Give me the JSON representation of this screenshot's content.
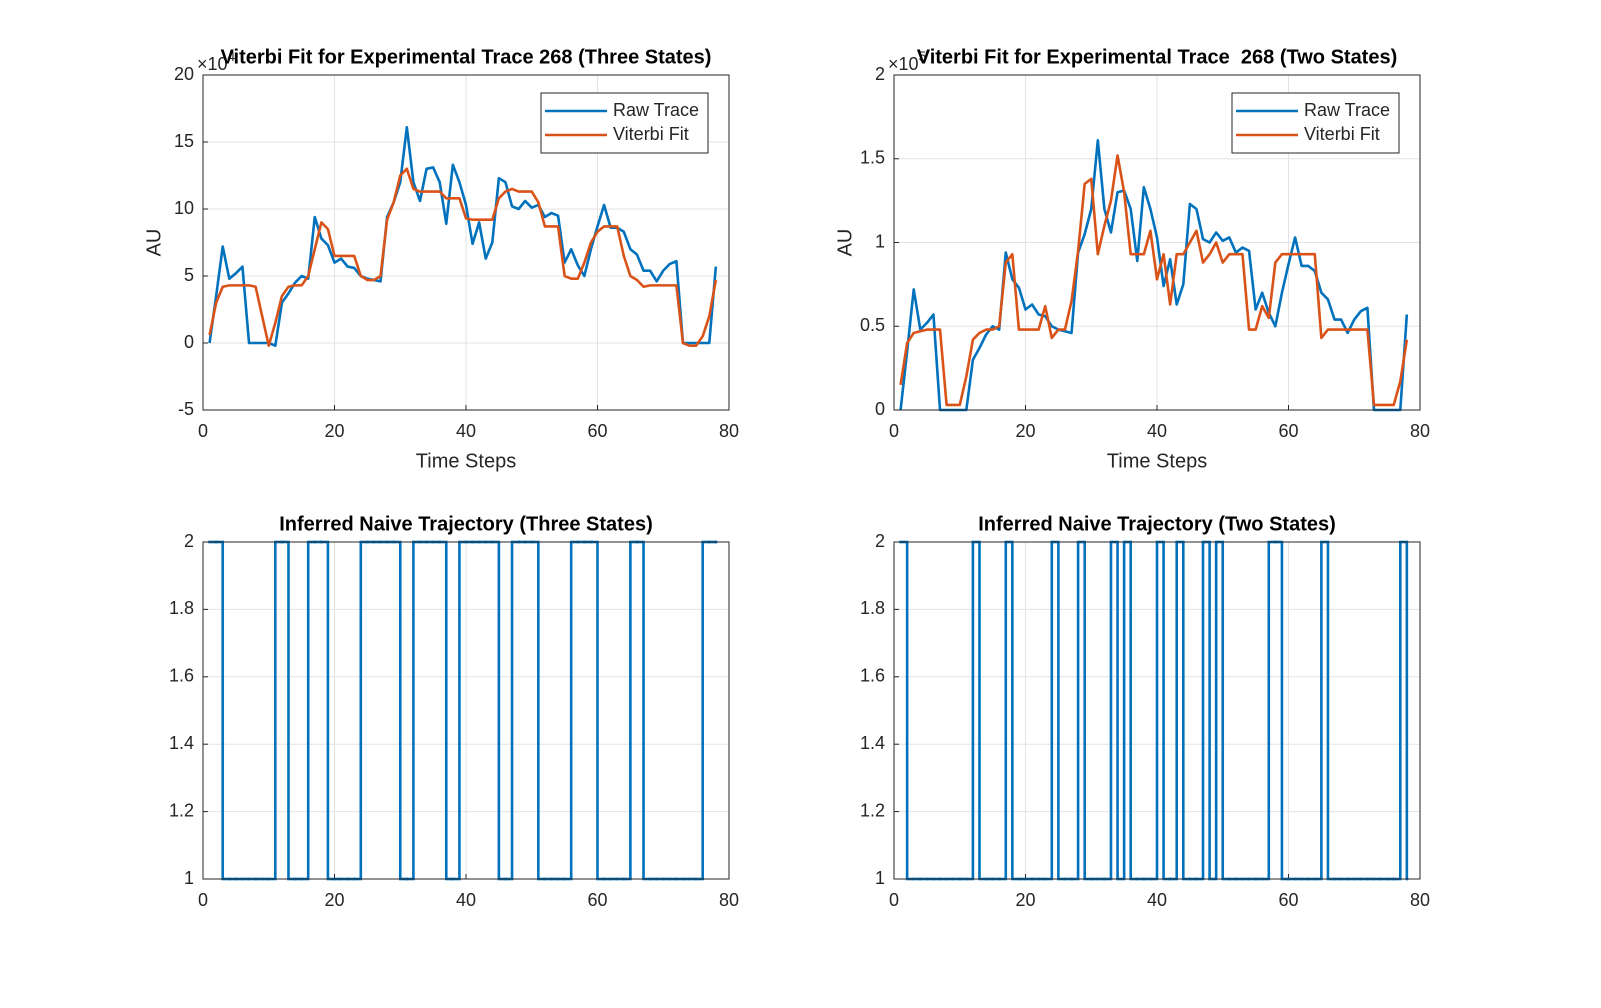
{
  "chart_data": [
    {
      "type": "line",
      "title": "Viterbi Fit for Experimental Trace 268 (Three States)",
      "xlabel": "Time Steps",
      "ylabel": "AU",
      "y_exponent_base": "×10",
      "y_exponent": "4",
      "x": [
        1,
        2,
        3,
        4,
        5,
        6,
        7,
        8,
        9,
        10,
        11,
        12,
        13,
        14,
        15,
        16,
        17,
        18,
        19,
        20,
        21,
        22,
        23,
        24,
        25,
        26,
        27,
        28,
        29,
        30,
        31,
        32,
        33,
        34,
        35,
        36,
        37,
        38,
        39,
        40,
        41,
        42,
        43,
        44,
        45,
        46,
        47,
        48,
        49,
        50,
        51,
        52,
        53,
        54,
        55,
        56,
        57,
        58,
        59,
        60,
        61,
        62,
        63,
        64,
        65,
        66,
        67,
        68,
        69,
        70,
        71,
        72,
        73,
        74,
        75,
        76,
        77,
        78
      ],
      "series": [
        {
          "name": "Raw Trace",
          "color": "#0072bd",
          "values": [
            0,
            3.5,
            7.2,
            4.8,
            5.2,
            5.7,
            0,
            0,
            0,
            0,
            -0.2,
            3.0,
            3.7,
            4.5,
            5.0,
            4.8,
            9.4,
            7.8,
            7.3,
            6.0,
            6.3,
            5.7,
            5.6,
            5.0,
            4.8,
            4.7,
            4.6,
            9.4,
            10.5,
            12.0,
            16.1,
            12.0,
            10.6,
            13.0,
            13.1,
            12.0,
            8.9,
            13.3,
            12.0,
            10.3,
            7.4,
            9.0,
            6.3,
            7.5,
            12.3,
            12.0,
            10.2,
            10.0,
            10.6,
            10.1,
            10.3,
            9.4,
            9.7,
            9.5,
            6.0,
            7.0,
            5.8,
            5.0,
            7.0,
            8.7,
            10.3,
            8.6,
            8.6,
            8.3,
            7.0,
            6.6,
            5.4,
            5.4,
            4.6,
            5.4,
            5.9,
            6.1,
            0,
            0,
            0,
            0,
            0,
            5.7
          ]
        },
        {
          "name": "Viterbi Fit",
          "color": "#d95319",
          "values": [
            0.6,
            3.0,
            4.2,
            4.3,
            4.3,
            4.3,
            4.3,
            4.2,
            2.0,
            -0.2,
            1.5,
            3.5,
            4.2,
            4.3,
            4.3,
            5.0,
            7.0,
            9.0,
            8.5,
            6.5,
            6.5,
            6.5,
            6.5,
            5.0,
            4.7,
            4.7,
            5.0,
            9.2,
            10.5,
            12.5,
            13.0,
            11.5,
            11.3,
            11.3,
            11.3,
            11.3,
            10.8,
            10.8,
            10.8,
            9.3,
            9.2,
            9.2,
            9.2,
            9.2,
            10.8,
            11.3,
            11.5,
            11.3,
            11.3,
            11.3,
            10.5,
            8.7,
            8.7,
            8.7,
            5.0,
            4.8,
            4.8,
            6.0,
            7.5,
            8.3,
            8.7,
            8.7,
            8.7,
            6.5,
            5.0,
            4.7,
            4.2,
            4.3,
            4.3,
            4.3,
            4.3,
            4.3,
            0.0,
            -0.2,
            -0.2,
            0.5,
            2.0,
            4.7
          ]
        }
      ],
      "xlim": [
        0,
        80
      ],
      "xticks": [
        0,
        20,
        40,
        60,
        80
      ],
      "ylim": [
        -5,
        20
      ],
      "yticks": [
        -5,
        0,
        5,
        10,
        15,
        20
      ],
      "grid": true,
      "legend": "northeast"
    },
    {
      "type": "line",
      "title": "Viterbi Fit for Experimental Trace  268 (Two States)",
      "xlabel": "Time Steps",
      "ylabel": "AU",
      "y_exponent_base": "×10",
      "y_exponent": "5",
      "x": [
        1,
        2,
        3,
        4,
        5,
        6,
        7,
        8,
        9,
        10,
        11,
        12,
        13,
        14,
        15,
        16,
        17,
        18,
        19,
        20,
        21,
        22,
        23,
        24,
        25,
        26,
        27,
        28,
        29,
        30,
        31,
        32,
        33,
        34,
        35,
        36,
        37,
        38,
        39,
        40,
        41,
        42,
        43,
        44,
        45,
        46,
        47,
        48,
        49,
        50,
        51,
        52,
        53,
        54,
        55,
        56,
        57,
        58,
        59,
        60,
        61,
        62,
        63,
        64,
        65,
        66,
        67,
        68,
        69,
        70,
        71,
        72,
        73,
        74,
        75,
        76,
        77,
        78
      ],
      "series": [
        {
          "name": "Raw Trace",
          "color": "#0072bd",
          "values": [
            0,
            0.35,
            0.72,
            0.48,
            0.52,
            0.57,
            0,
            0,
            0,
            0,
            0,
            0.3,
            0.37,
            0.45,
            0.5,
            0.48,
            0.94,
            0.78,
            0.73,
            0.6,
            0.63,
            0.57,
            0.56,
            0.5,
            0.48,
            0.47,
            0.46,
            0.94,
            1.05,
            1.2,
            1.61,
            1.2,
            1.06,
            1.3,
            1.31,
            1.2,
            0.89,
            1.33,
            1.2,
            1.03,
            0.74,
            0.9,
            0.63,
            0.75,
            1.23,
            1.2,
            1.02,
            1.0,
            1.06,
            1.01,
            1.03,
            0.94,
            0.97,
            0.95,
            0.6,
            0.7,
            0.58,
            0.5,
            0.7,
            0.87,
            1.03,
            0.86,
            0.86,
            0.83,
            0.7,
            0.66,
            0.54,
            0.54,
            0.46,
            0.54,
            0.59,
            0.61,
            0,
            0,
            0,
            0,
            0,
            0.57
          ]
        },
        {
          "name": "Viterbi Fit",
          "color": "#d95319",
          "values": [
            0.15,
            0.4,
            0.46,
            0.47,
            0.48,
            0.48,
            0.48,
            0.03,
            0.03,
            0.03,
            0.2,
            0.42,
            0.46,
            0.48,
            0.48,
            0.5,
            0.88,
            0.93,
            0.48,
            0.48,
            0.48,
            0.48,
            0.62,
            0.43,
            0.48,
            0.48,
            0.65,
            0.95,
            1.35,
            1.38,
            0.93,
            1.1,
            1.25,
            1.52,
            1.3,
            0.93,
            0.93,
            0.93,
            1.07,
            0.78,
            0.93,
            0.63,
            0.93,
            0.93,
            1.0,
            1.07,
            0.88,
            0.93,
            1.0,
            0.88,
            0.93,
            0.93,
            0.93,
            0.48,
            0.48,
            0.62,
            0.55,
            0.88,
            0.93,
            0.93,
            0.93,
            0.93,
            0.93,
            0.93,
            0.43,
            0.48,
            0.48,
            0.48,
            0.48,
            0.48,
            0.48,
            0.48,
            0.03,
            0.03,
            0.03,
            0.03,
            0.17,
            0.42
          ]
        }
      ],
      "xlim": [
        0,
        80
      ],
      "xticks": [
        0,
        20,
        40,
        60,
        80
      ],
      "ylim": [
        0,
        2
      ],
      "yticks": [
        0,
        0.5,
        1,
        1.5,
        2
      ],
      "grid": true,
      "legend": "northeast"
    },
    {
      "type": "stairs",
      "title": "Inferred Naive Trajectory (Three States)",
      "x": [
        1,
        2,
        3,
        4,
        5,
        6,
        7,
        8,
        9,
        10,
        11,
        12,
        13,
        14,
        15,
        16,
        17,
        18,
        19,
        20,
        21,
        22,
        23,
        24,
        25,
        26,
        27,
        28,
        29,
        30,
        31,
        32,
        33,
        34,
        35,
        36,
        37,
        38,
        39,
        40,
        41,
        42,
        43,
        44,
        45,
        46,
        47,
        48,
        49,
        50,
        51,
        52,
        53,
        54,
        55,
        56,
        57,
        58,
        59,
        60,
        61,
        62,
        63,
        64,
        65,
        66,
        67,
        68,
        69,
        70,
        71,
        72,
        73,
        74,
        75,
        76,
        77,
        78
      ],
      "series": [
        {
          "color": "#0072bd",
          "values": [
            2,
            2,
            1,
            1,
            1,
            1,
            1,
            1,
            1,
            1,
            2,
            2,
            1,
            1,
            1,
            2,
            2,
            2,
            1,
            1,
            1,
            1,
            1,
            2,
            2,
            2,
            2,
            2,
            2,
            1,
            1,
            2,
            2,
            2,
            2,
            2,
            1,
            1,
            2,
            2,
            2,
            2,
            2,
            2,
            1,
            1,
            2,
            2,
            2,
            2,
            1,
            1,
            1,
            1,
            1,
            2,
            2,
            2,
            2,
            1,
            1,
            1,
            1,
            1,
            2,
            2,
            1,
            1,
            1,
            1,
            1,
            1,
            1,
            1,
            1,
            2,
            2,
            2
          ]
        }
      ],
      "xlim": [
        0,
        80
      ],
      "xticks": [
        0,
        20,
        40,
        60,
        80
      ],
      "ylim": [
        1,
        2
      ],
      "yticks": [
        1,
        1.2,
        1.4,
        1.6,
        1.8,
        2
      ],
      "grid": true
    },
    {
      "type": "stairs",
      "title": "Inferred Naive Trajectory (Two States)",
      "x": [
        1,
        2,
        3,
        4,
        5,
        6,
        7,
        8,
        9,
        10,
        11,
        12,
        13,
        14,
        15,
        16,
        17,
        18,
        19,
        20,
        21,
        22,
        23,
        24,
        25,
        26,
        27,
        28,
        29,
        30,
        31,
        32,
        33,
        34,
        35,
        36,
        37,
        38,
        39,
        40,
        41,
        42,
        43,
        44,
        45,
        46,
        47,
        48,
        49,
        50,
        51,
        52,
        53,
        54,
        55,
        56,
        57,
        58,
        59,
        60,
        61,
        62,
        63,
        64,
        65,
        66,
        67,
        68,
        69,
        70,
        71,
        72,
        73,
        74,
        75,
        76,
        77,
        78
      ],
      "series": [
        {
          "color": "#0072bd",
          "values": [
            2,
            1,
            1,
            1,
            1,
            1,
            1,
            1,
            1,
            1,
            1,
            2,
            1,
            1,
            1,
            1,
            2,
            1,
            1,
            1,
            1,
            1,
            1,
            2,
            1,
            1,
            1,
            2,
            1,
            1,
            1,
            1,
            2,
            1,
            2,
            1,
            1,
            1,
            1,
            2,
            1,
            1,
            2,
            1,
            1,
            1,
            2,
            1,
            2,
            1,
            1,
            1,
            1,
            1,
            1,
            1,
            2,
            2,
            1,
            1,
            1,
            1,
            1,
            1,
            2,
            1,
            1,
            1,
            1,
            1,
            1,
            1,
            1,
            1,
            1,
            1,
            2,
            1
          ]
        }
      ],
      "xlim": [
        0,
        80
      ],
      "xticks": [
        0,
        20,
        40,
        60,
        80
      ],
      "ylim": [
        1,
        2
      ],
      "yticks": [
        1,
        1.2,
        1.4,
        1.6,
        1.8,
        2
      ],
      "grid": true
    }
  ]
}
